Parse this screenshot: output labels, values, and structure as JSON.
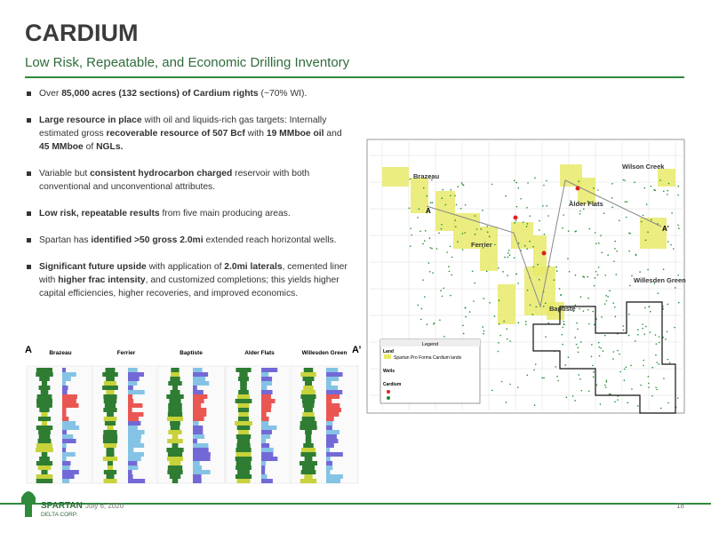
{
  "header": {
    "title": "CARDIUM",
    "subtitle": "Low Risk, Repeatable, and Economic Drilling Inventory"
  },
  "bullets": [
    {
      "segments": [
        {
          "text": "Over ",
          "bold": false
        },
        {
          "text": "85,000 acres (132 sections) of Cardium rights",
          "bold": true
        },
        {
          "text": " (~70% WI).",
          "bold": false
        }
      ]
    },
    {
      "segments": [
        {
          "text": "Large resource in place",
          "bold": true
        },
        {
          "text": " with oil and liquids-rich gas targets: Internally estimated gross ",
          "bold": false
        },
        {
          "text": "recoverable resource of 507 Bcf",
          "bold": true
        },
        {
          "text": " with ",
          "bold": false
        },
        {
          "text": "19 MMboe oil",
          "bold": true
        },
        {
          "text": " and ",
          "bold": false
        },
        {
          "text": "45 MMboe",
          "bold": true
        },
        {
          "text": " of ",
          "bold": false
        },
        {
          "text": "NGLs.",
          "bold": true
        }
      ]
    },
    {
      "segments": [
        {
          "text": "Variable but ",
          "bold": false
        },
        {
          "text": "consistent hydrocarbon charged",
          "bold": true
        },
        {
          "text": " reservoir with both conventional and unconventional attributes.",
          "bold": false
        }
      ]
    },
    {
      "segments": [
        {
          "text": "Low risk, repeatable results",
          "bold": true
        },
        {
          "text": " from five main producing areas.",
          "bold": false
        }
      ]
    },
    {
      "segments": [
        {
          "text": "Spartan has ",
          "bold": false
        },
        {
          "text": "identified >50 gross 2.0mi",
          "bold": true
        },
        {
          "text": " extended reach horizontal wells.",
          "bold": false
        }
      ]
    },
    {
      "segments": [
        {
          "text": "Significant future upside",
          "bold": true
        },
        {
          "text": " with application of ",
          "bold": false
        },
        {
          "text": "2.0mi laterals",
          "bold": true
        },
        {
          "text": ", cemented liner with ",
          "bold": false
        },
        {
          "text": "higher frac intensity",
          "bold": true
        },
        {
          "text": ", and customized completions; this yields higher capital efficiencies, higher recoveries, and improved economics.",
          "bold": false
        }
      ]
    }
  ],
  "map": {
    "places": [
      "Brazeau",
      "Wilson Creek",
      "Alder Flats",
      "Ferrier",
      "Willesden Green",
      "Baptiste"
    ],
    "section_start": "A",
    "section_end": "A'",
    "legend": {
      "title": "Legend",
      "land": "Land",
      "land_item": "Spartan Pro Forma Cardium lands",
      "wells": "Wells",
      "cardium": "Cardium"
    }
  },
  "cross_section": {
    "start": "A",
    "end": "A’",
    "wells": [
      "Brazeau",
      "Ferrier",
      "Baptiste",
      "Alder Flats",
      "Willesden Green"
    ]
  },
  "footer": {
    "date": "July 6, 2020",
    "page": "18",
    "logo_top": "SPARTAN",
    "logo_bottom": "DELTA CORP."
  }
}
